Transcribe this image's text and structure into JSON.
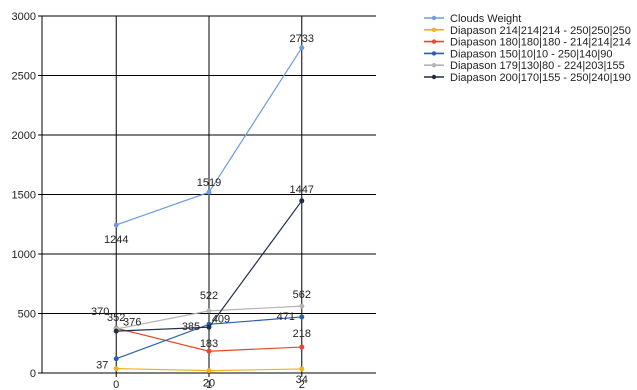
{
  "chart_data": {
    "type": "line",
    "x": [
      0,
      1,
      2
    ],
    "xlim": [
      -0.8,
      2.8
    ],
    "ylim": [
      0,
      3000
    ],
    "xticks": [
      0,
      1,
      2
    ],
    "yticks": [
      0,
      500,
      1000,
      1500,
      2000,
      2500,
      3000
    ],
    "grid": true,
    "legend_position": "top-right",
    "series": [
      {
        "name": "Clouds Weight",
        "color": "#6f9be0",
        "values": [
          1244,
          1519,
          2733
        ],
        "labels": [
          "1244",
          "1519",
          "2733"
        ]
      },
      {
        "name": "Diapason 214|214|214 - 250|250|250",
        "color": "#f2b21b",
        "values": [
          37,
          20,
          34
        ],
        "labels": [
          "37",
          "20",
          "34"
        ]
      },
      {
        "name": "Diapason 180|180|180 - 214|214|214",
        "color": "#e8472a",
        "values": [
          376,
          183,
          218
        ],
        "labels": [
          "376",
          "183",
          "218"
        ]
      },
      {
        "name": "Diapason 150|10|10 - 250|140|90",
        "color": "#2a5fae",
        "values": [
          120,
          409,
          471
        ],
        "labels": [
          "",
          "409",
          "471"
        ]
      },
      {
        "name": "Diapason 179|130|80 - 224|203|155",
        "color": "#b4b4b4",
        "values": [
          370,
          522,
          562
        ],
        "labels": [
          "370",
          "522",
          "562"
        ]
      },
      {
        "name": "Diapason 200|170|155 - 250|240|190",
        "color": "#1f2d45",
        "values": [
          352,
          385,
          1447
        ],
        "labels": [
          "352",
          "385",
          "1447"
        ]
      }
    ]
  }
}
